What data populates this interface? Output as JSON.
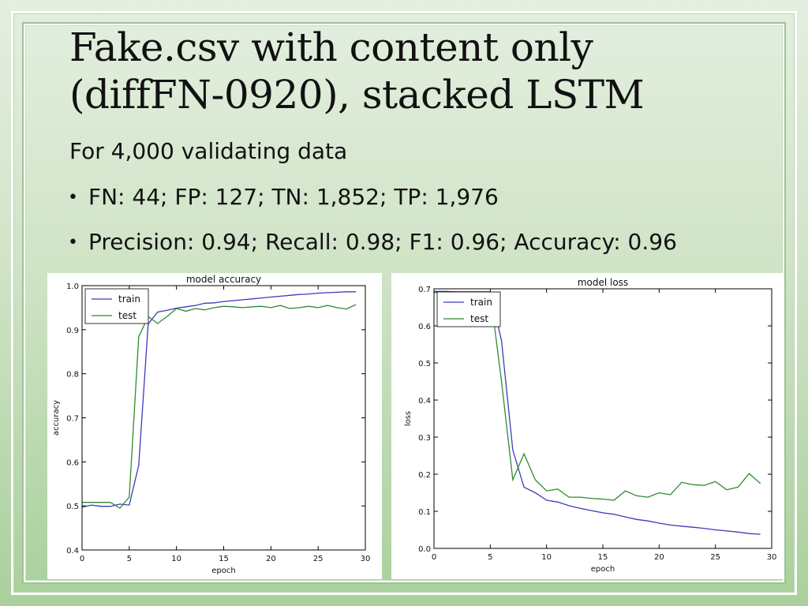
{
  "slide": {
    "title_line1": "Fake.csv with content only",
    "title_line2": "(diffFN-0920), stacked LSTM",
    "subtitle": "For 4,000 validating data",
    "bullets": [
      "FN: 44; FP: 127; TN: 1,852; TP: 1,976",
      "Precision: 0.94; Recall: 0.98; F1: 0.96; Accuracy: 0.96"
    ],
    "bullet_icon": "bullet-dot",
    "background_color": "#cfe3c6"
  },
  "chart_data": [
    {
      "type": "line",
      "title": "model accuracy",
      "xlabel": "epoch",
      "ylabel": "accuracy",
      "xlim": [
        0,
        30
      ],
      "ylim": [
        0.4,
        1.0
      ],
      "xticks": [
        "0",
        "5",
        "10",
        "15",
        "20",
        "25",
        "30"
      ],
      "yticks": [
        "0.4",
        "0.5",
        "0.6",
        "0.7",
        "0.8",
        "0.9",
        "1.0"
      ],
      "legend_position": "top-left",
      "grid": false,
      "x": [
        0,
        1,
        2,
        3,
        4,
        5,
        6,
        7,
        8,
        9,
        10,
        11,
        12,
        13,
        14,
        15,
        16,
        17,
        18,
        19,
        20,
        21,
        22,
        23,
        24,
        25,
        26,
        27,
        28,
        29
      ],
      "series": [
        {
          "name": "train",
          "color": "#3b3bbf",
          "values": [
            0.497,
            0.502,
            0.499,
            0.499,
            0.504,
            0.502,
            0.592,
            0.913,
            0.94,
            0.944,
            0.949,
            0.952,
            0.955,
            0.96,
            0.961,
            0.964,
            0.966,
            0.968,
            0.97,
            0.972,
            0.974,
            0.976,
            0.978,
            0.98,
            0.981,
            0.983,
            0.984,
            0.985,
            0.986,
            0.986
          ]
        },
        {
          "name": "test",
          "color": "#2e8b2e",
          "values": [
            0.508,
            0.508,
            0.508,
            0.508,
            0.495,
            0.52,
            0.884,
            0.93,
            0.914,
            0.93,
            0.948,
            0.942,
            0.948,
            0.945,
            0.95,
            0.953,
            0.952,
            0.95,
            0.952,
            0.953,
            0.95,
            0.955,
            0.948,
            0.95,
            0.953,
            0.95,
            0.955,
            0.95,
            0.947,
            0.957
          ]
        }
      ]
    },
    {
      "type": "line",
      "title": "model loss",
      "xlabel": "epoch",
      "ylabel": "loss",
      "xlim": [
        0,
        30
      ],
      "ylim": [
        0.0,
        0.7
      ],
      "xticks": [
        "0",
        "5",
        "10",
        "15",
        "20",
        "25",
        "30"
      ],
      "yticks": [
        "0.0",
        "0.1",
        "0.2",
        "0.3",
        "0.4",
        "0.5",
        "0.6",
        "0.7"
      ],
      "legend_position": "top-left",
      "grid": false,
      "x": [
        0,
        1,
        2,
        3,
        4,
        5,
        6,
        7,
        8,
        9,
        10,
        11,
        12,
        13,
        14,
        15,
        16,
        17,
        18,
        19,
        20,
        21,
        22,
        23,
        24,
        25,
        26,
        27,
        28,
        29
      ],
      "series": [
        {
          "name": "train",
          "color": "#3b3bbf",
          "values": [
            0.693,
            0.693,
            0.692,
            0.692,
            0.692,
            0.692,
            0.56,
            0.265,
            0.165,
            0.15,
            0.13,
            0.125,
            0.115,
            0.108,
            0.102,
            0.096,
            0.092,
            0.085,
            0.078,
            0.074,
            0.068,
            0.063,
            0.06,
            0.057,
            0.054,
            0.05,
            0.047,
            0.044,
            0.04,
            0.038
          ]
        },
        {
          "name": "test",
          "color": "#2e8b2e",
          "values": [
            0.69,
            0.69,
            0.689,
            0.689,
            0.689,
            0.689,
            0.45,
            0.185,
            0.255,
            0.185,
            0.155,
            0.16,
            0.138,
            0.138,
            0.135,
            0.133,
            0.13,
            0.155,
            0.142,
            0.138,
            0.15,
            0.145,
            0.178,
            0.172,
            0.17,
            0.18,
            0.158,
            0.165,
            0.202,
            0.175
          ]
        }
      ]
    }
  ]
}
